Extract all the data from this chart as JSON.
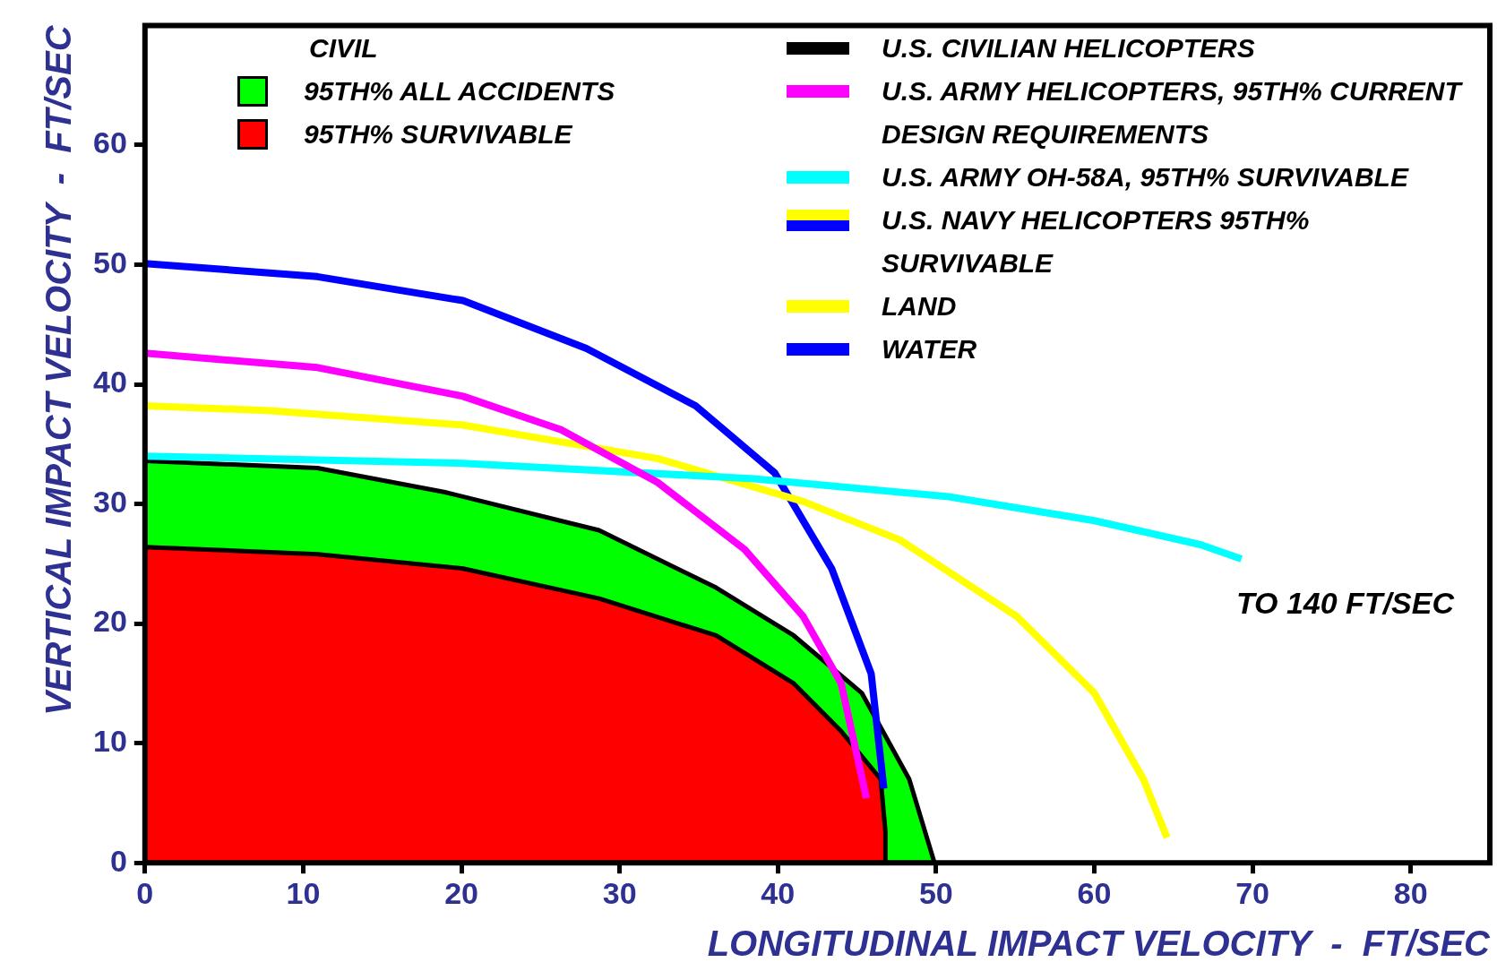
{
  "chart_data": {
    "type": "line",
    "xlabel": "LONGITUDINAL IMPACT VELOCITY  -  FT/SEC",
    "ylabel": "VERTICAL IMPACT VELOCITY  -  FT/SEC",
    "xlim": [
      0,
      85
    ],
    "xticks": [
      0,
      10,
      20,
      30,
      40,
      50,
      60,
      70,
      80
    ],
    "ylim": [
      0,
      70
    ],
    "yticks": [
      0,
      10,
      20,
      30,
      40,
      50,
      60
    ],
    "legend": "top",
    "annotations": [
      "CIVIL",
      "U.S. CIVILIAN HELICOPTERS",
      "U.S. NAVY HELICOPTERS 95TH% SURVIVABLE",
      "TO 140 FT/SEC"
    ],
    "series": [
      {
        "type": "area",
        "name": "95TH%  ALL ACCIDENTS",
        "color": "#00ff00",
        "x": [
          0,
          10.9,
          18.9,
          28.7,
          36.1,
          41,
          45.3,
          48.3,
          49.9
        ],
        "values": [
          33.6,
          33,
          31,
          27.8,
          23,
          19,
          14.2,
          7,
          0
        ]
      },
      {
        "type": "area",
        "name": "95TH%  SURVIVABLE",
        "color": "#ff0000",
        "x": [
          0,
          10.9,
          20.1,
          28.7,
          36.1,
          41,
          44,
          46.5,
          46.8,
          46.8
        ],
        "values": [
          26.4,
          25.8,
          24.6,
          22.1,
          19,
          15,
          11,
          7,
          2.6,
          0
        ]
      },
      {
        "type": "line",
        "name": "U.S. ARMY HELICOPTERS,  95TH% CURRENT DESIGN REQUIREMENTS",
        "color": "#ff00ff",
        "x": [
          0,
          10.9,
          20.1,
          26.3,
          32.4,
          37.9,
          41.6,
          44,
          45.6
        ],
        "values": [
          42.6,
          41.4,
          39,
          36.2,
          31.8,
          26.2,
          20.6,
          15,
          5.4
        ]
      },
      {
        "type": "line",
        "name": "U.S. ARMY OH-58A,  95TH% SURVIVABLE",
        "color": "#00ffff",
        "x": [
          0,
          20.1,
          38.5,
          50.8,
          60,
          66.7,
          69.3
        ],
        "values": [
          34,
          33.4,
          32.1,
          30.6,
          28.6,
          26.6,
          25.4
        ]
      },
      {
        "type": "line",
        "name": "LAND",
        "color": "#ffff00",
        "x": [
          0,
          7.9,
          20.1,
          32.4,
          41.6,
          47.7,
          55.1,
          60,
          63.1,
          64.6
        ],
        "values": [
          38.2,
          37.8,
          36.6,
          33.8,
          30.2,
          27,
          20.6,
          14.2,
          7,
          2.1
        ]
      },
      {
        "type": "line",
        "name": "WATER",
        "color": "#0000ff",
        "x": [
          0,
          10.9,
          20.1,
          27.9,
          34.8,
          39.8,
          43.4,
          45.9,
          46.7
        ],
        "values": [
          50.1,
          49,
          47,
          43,
          38.2,
          32.6,
          24.6,
          15.8,
          6.2
        ]
      }
    ]
  }
}
